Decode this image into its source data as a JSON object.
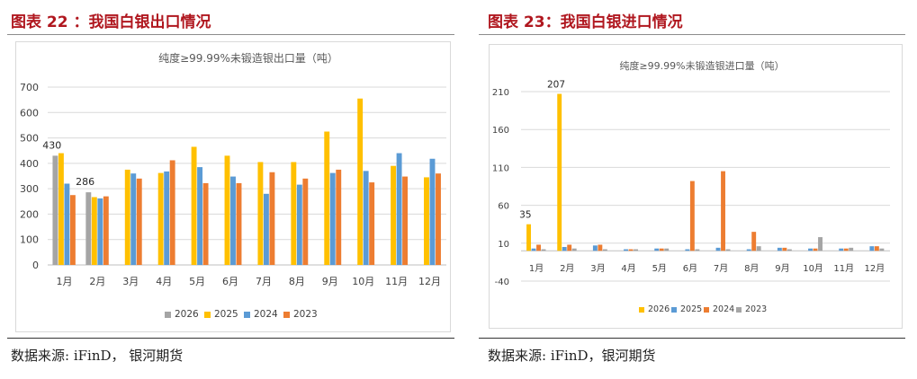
{
  "figures": [
    {
      "heading": "图表 22 ：我国白银出口情况",
      "source": "数据来源: iFinD， 银河期货"
    },
    {
      "heading": "图表 23：我国白银进口情况",
      "source": "数据来源: iFinD，银河期货"
    }
  ],
  "chart_data": [
    {
      "type": "bar",
      "title": "纯度≥99.99%未锻造银出口量（吨）",
      "categories": [
        "1月",
        "2月",
        "3月",
        "4月",
        "5月",
        "6月",
        "7月",
        "8月",
        "9月",
        "10月",
        "11月",
        "12月"
      ],
      "yticks": [
        0,
        100,
        200,
        300,
        400,
        500,
        600,
        700
      ],
      "ylim": [
        0,
        700
      ],
      "grid": true,
      "legend_position": "bottom",
      "series": [
        {
          "name": "2026",
          "color": "#a5a5a5",
          "values": [
            430,
            286,
            null,
            null,
            null,
            null,
            null,
            null,
            null,
            null,
            null,
            null
          ]
        },
        {
          "name": "2025",
          "color": "#ffc000",
          "values": [
            440,
            267,
            375,
            362,
            465,
            430,
            405,
            405,
            525,
            655,
            390,
            345
          ]
        },
        {
          "name": "2024",
          "color": "#5b9bd5",
          "values": [
            320,
            262,
            360,
            368,
            385,
            348,
            280,
            316,
            362,
            370,
            440,
            418
          ]
        },
        {
          "name": "2023",
          "color": "#ed7d31",
          "values": [
            275,
            270,
            340,
            412,
            322,
            322,
            365,
            340,
            375,
            325,
            348,
            360
          ]
        }
      ],
      "data_labels": [
        {
          "series": "2026",
          "index": 0,
          "text": "430"
        },
        {
          "series": "2026",
          "index": 1,
          "text": "286"
        }
      ]
    },
    {
      "type": "bar",
      "title": "纯度≥99.99%未锻造银进口量（吨）",
      "categories": [
        "1月",
        "2月",
        "3月",
        "4月",
        "5月",
        "6月",
        "7月",
        "8月",
        "9月",
        "10月",
        "11月",
        "12月"
      ],
      "yticks": [
        -40,
        10,
        60,
        110,
        160,
        210
      ],
      "ylim": [
        -40,
        210
      ],
      "grid": true,
      "legend_position": "bottom",
      "series": [
        {
          "name": "2026",
          "color": "#ffc000",
          "values": [
            35,
            207,
            null,
            null,
            null,
            null,
            null,
            null,
            null,
            null,
            null,
            null
          ]
        },
        {
          "name": "2025",
          "color": "#5b9bd5",
          "values": [
            3,
            5,
            7,
            2,
            3,
            2,
            4,
            2,
            4,
            3,
            3,
            6
          ]
        },
        {
          "name": "2024",
          "color": "#ed7d31",
          "values": [
            8,
            8,
            8,
            2,
            3,
            92,
            105,
            25,
            4,
            3,
            3,
            6
          ]
        },
        {
          "name": "2023",
          "color": "#a5a5a5",
          "values": [
            2,
            3,
            2,
            2,
            3,
            2,
            2,
            6,
            2,
            18,
            4,
            3
          ]
        }
      ],
      "data_labels": [
        {
          "series": "2026",
          "index": 0,
          "text": "35"
        },
        {
          "series": "2026",
          "index": 1,
          "text": "207"
        }
      ]
    }
  ]
}
